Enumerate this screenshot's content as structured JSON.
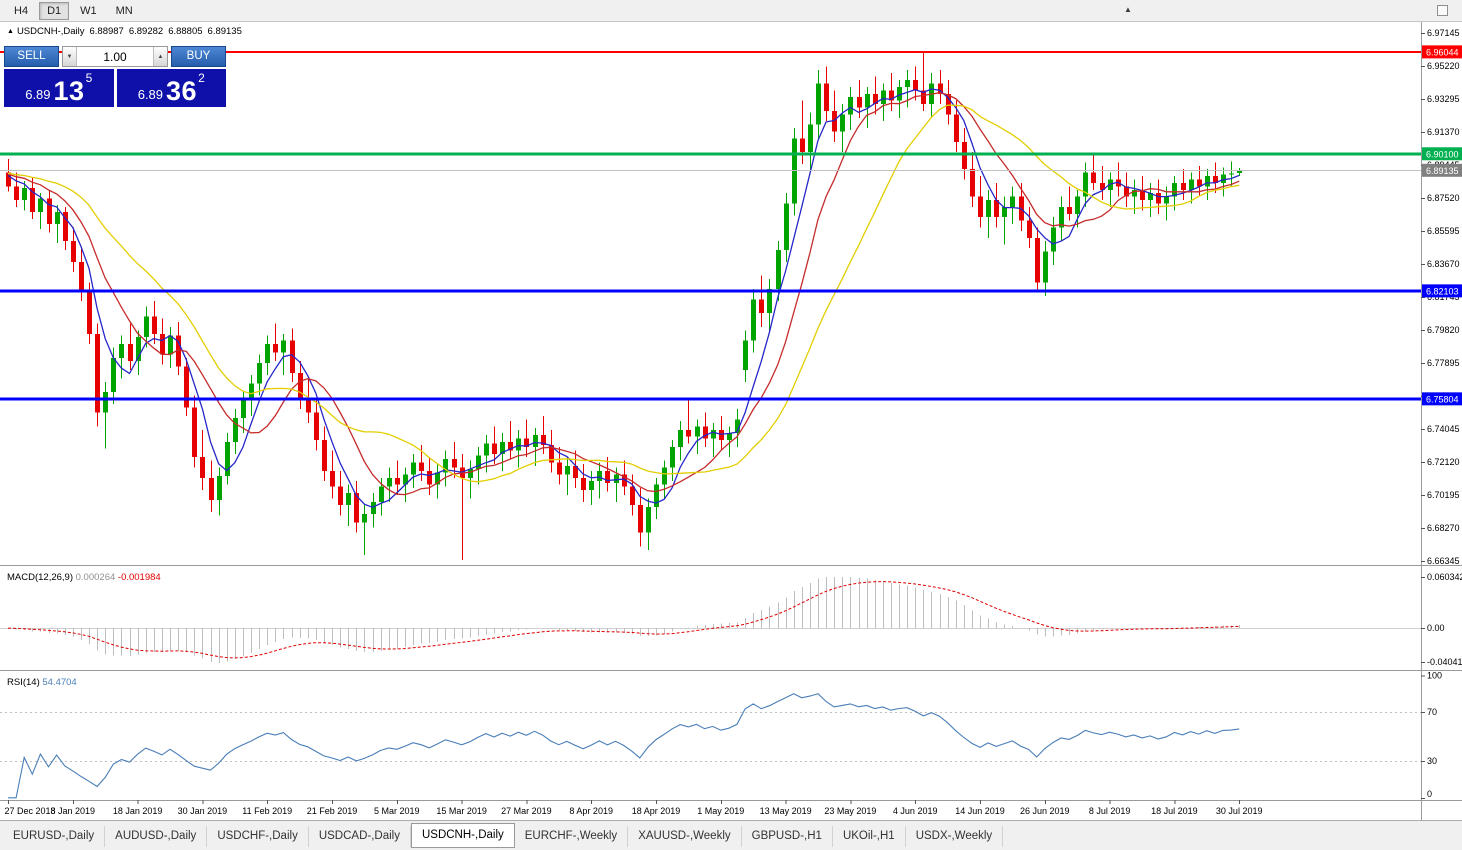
{
  "toolbar": {
    "timeframes": [
      {
        "label": "H4",
        "active": false
      },
      {
        "label": "D1",
        "active": true
      },
      {
        "label": "W1",
        "active": false
      },
      {
        "label": "MN",
        "active": false
      }
    ],
    "icons": {
      "up_triangle": "▲",
      "down_triangle": "▼"
    }
  },
  "chart_header": {
    "icon": "▲",
    "symbol_period": "USDCNH-,Daily",
    "open": "6.88987",
    "high": "6.89282",
    "low": "6.88805",
    "close": "6.89135"
  },
  "trade_panel": {
    "sell_label": "SELL",
    "buy_label": "BUY",
    "volume": "1.00",
    "sell_price_prefix": "6.89",
    "sell_price_big": "13",
    "sell_price_sup": "5",
    "buy_price_prefix": "6.89",
    "buy_price_big": "36",
    "buy_price_sup": "2"
  },
  "price_axis": {
    "labels": [
      "6.97145",
      "6.95220",
      "6.93295",
      "6.91370",
      "6.89445",
      "6.87520",
      "6.85595",
      "6.83670",
      "6.81745",
      "6.79820",
      "6.77895",
      "6.75970",
      "6.74045",
      "6.72120",
      "6.70195",
      "6.68270",
      "6.66345"
    ]
  },
  "date_axis": {
    "labels": [
      {
        "text": "27 Dec 2018",
        "i": 0
      },
      {
        "text": "8 Jan 2019",
        "i": 8
      },
      {
        "text": "18 Jan 2019",
        "i": 16
      },
      {
        "text": "30 Jan 2019",
        "i": 24
      },
      {
        "text": "11 Feb 2019",
        "i": 32
      },
      {
        "text": "21 Feb 2019",
        "i": 40
      },
      {
        "text": "5 Mar 2019",
        "i": 48
      },
      {
        "text": "15 Mar 2019",
        "i": 56
      },
      {
        "text": "27 Mar 2019",
        "i": 64
      },
      {
        "text": "8 Apr 2019",
        "i": 72
      },
      {
        "text": "18 Apr 2019",
        "i": 80
      },
      {
        "text": "1 May 2019",
        "i": 88
      },
      {
        "text": "13 May 2019",
        "i": 96
      },
      {
        "text": "23 May 2019",
        "i": 104
      },
      {
        "text": "4 Jun 2019",
        "i": 112
      },
      {
        "text": "14 Jun 2019",
        "i": 120
      },
      {
        "text": "26 Jun 2019",
        "i": 128
      },
      {
        "text": "8 Jul 2019",
        "i": 136
      },
      {
        "text": "18 Jul 2019",
        "i": 144
      },
      {
        "text": "30 Jul 2019",
        "i": 152
      }
    ]
  },
  "macd_panel": {
    "name": "MACD(12,26,9)",
    "fast": 12,
    "slow": 26,
    "signal": 9,
    "main_value": "0.000264",
    "signal_value": "-0.001984",
    "main_color": "#8f8f8f",
    "signal_color": "#e00000",
    "hist_color": "#bdbdbd",
    "axis_labels": [
      "0.060342",
      "0.00",
      "-0.040415"
    ]
  },
  "rsi_panel": {
    "name": "RSI(14)",
    "period": 14,
    "value": "54.4704",
    "color": "#4a7eb8",
    "levels": [
      "100",
      "70",
      "30",
      "0"
    ]
  },
  "tabs": [
    {
      "label": "EURUSD-,Daily",
      "active": false
    },
    {
      "label": "AUDUSD-,Daily",
      "active": false
    },
    {
      "label": "USDCHF-,Daily",
      "active": false
    },
    {
      "label": "USDCAD-,Daily",
      "active": false
    },
    {
      "label": "USDCNH-,Daily",
      "active": true
    },
    {
      "label": "EURCHF-,Weekly",
      "active": false
    },
    {
      "label": "XAUUSD-,Weekly",
      "active": false
    },
    {
      "label": "GBPUSD-,H1",
      "active": false
    },
    {
      "label": "UKOil-,H1",
      "active": false
    },
    {
      "label": "USDX-,Weekly",
      "active": false
    }
  ],
  "chart_data": {
    "type": "candlestick",
    "symbol": "USDCNH-",
    "timeframe": "Daily",
    "price_range": [
      6.66345,
      6.97145
    ],
    "grid_step": 0.01925,
    "candle_up_color": "#00a400",
    "candle_down_color": "#e60000",
    "hlines": [
      {
        "price": 6.96044,
        "label": "6.96044",
        "color": "#ff0000",
        "width": 2
      },
      {
        "price": 6.901,
        "label": "6.90100",
        "color": "#00b050",
        "width": 3
      },
      {
        "price": 6.82103,
        "label": "6.82103",
        "color": "#0000ff",
        "width": 3
      },
      {
        "price": 6.75804,
        "label": "6.75804",
        "color": "#0000ff",
        "width": 3
      }
    ],
    "bid_line": {
      "price": 6.89135,
      "label": "6.89135",
      "line_color": "#c0c0c0",
      "tag_color": "#808080"
    },
    "ma_lines": [
      {
        "period": 5,
        "color": "#2626c8"
      },
      {
        "period": 10,
        "color": "#c62b2b"
      },
      {
        "period": 20,
        "color": "#e3ce00"
      }
    ],
    "candles": [
      [
        6.89,
        6.898,
        6.879,
        6.882
      ],
      [
        6.882,
        6.89,
        6.87,
        6.874
      ],
      [
        6.874,
        6.885,
        6.868,
        6.881
      ],
      [
        6.881,
        6.887,
        6.863,
        6.867
      ],
      [
        6.867,
        6.878,
        6.857,
        6.875
      ],
      [
        6.875,
        6.88,
        6.855,
        6.86
      ],
      [
        6.86,
        6.871,
        6.849,
        6.867
      ],
      [
        6.867,
        6.87,
        6.845,
        6.85
      ],
      [
        6.85,
        6.858,
        6.832,
        6.838
      ],
      [
        6.838,
        6.846,
        6.815,
        6.82
      ],
      [
        6.82,
        6.826,
        6.79,
        6.796
      ],
      [
        6.796,
        6.802,
        6.742,
        6.75
      ],
      [
        6.75,
        6.768,
        6.729,
        6.762
      ],
      [
        6.762,
        6.788,
        6.755,
        6.782
      ],
      [
        6.782,
        6.795,
        6.77,
        6.79
      ],
      [
        6.79,
        6.802,
        6.775,
        6.78
      ],
      [
        6.78,
        6.798,
        6.772,
        6.794
      ],
      [
        6.794,
        6.812,
        6.788,
        6.806
      ],
      [
        6.806,
        6.815,
        6.79,
        6.796
      ],
      [
        6.796,
        6.805,
        6.778,
        6.784
      ],
      [
        6.784,
        6.8,
        6.776,
        6.795
      ],
      [
        6.795,
        6.803,
        6.772,
        6.777
      ],
      [
        6.777,
        6.782,
        6.748,
        6.753
      ],
      [
        6.753,
        6.76,
        6.718,
        6.724
      ],
      [
        6.724,
        6.74,
        6.705,
        6.712
      ],
      [
        6.712,
        6.722,
        6.692,
        6.699
      ],
      [
        6.699,
        6.718,
        6.69,
        6.713
      ],
      [
        6.713,
        6.738,
        6.708,
        6.733
      ],
      [
        6.733,
        6.752,
        6.726,
        6.747
      ],
      [
        6.747,
        6.762,
        6.738,
        6.757
      ],
      [
        6.757,
        6.772,
        6.748,
        6.767
      ],
      [
        6.767,
        6.784,
        6.76,
        6.779
      ],
      [
        6.779,
        6.795,
        6.772,
        6.79
      ],
      [
        6.79,
        6.802,
        6.78,
        6.785
      ],
      [
        6.785,
        6.796,
        6.772,
        6.792
      ],
      [
        6.792,
        6.799,
        6.768,
        6.773
      ],
      [
        6.773,
        6.78,
        6.752,
        6.758
      ],
      [
        6.758,
        6.77,
        6.744,
        6.75
      ],
      [
        6.75,
        6.758,
        6.728,
        6.734
      ],
      [
        6.734,
        6.742,
        6.71,
        6.716
      ],
      [
        6.716,
        6.728,
        6.7,
        6.707
      ],
      [
        6.707,
        6.716,
        6.69,
        6.696
      ],
      [
        6.696,
        6.708,
        6.684,
        6.703
      ],
      [
        6.703,
        6.71,
        6.68,
        6.686
      ],
      [
        6.686,
        6.697,
        6.667,
        6.691
      ],
      [
        6.691,
        6.703,
        6.683,
        6.698
      ],
      [
        6.698,
        6.712,
        6.69,
        6.707
      ],
      [
        6.707,
        6.718,
        6.698,
        6.712
      ],
      [
        6.712,
        6.722,
        6.702,
        6.708
      ],
      [
        6.708,
        6.718,
        6.698,
        6.714
      ],
      [
        6.714,
        6.726,
        6.706,
        6.721
      ],
      [
        6.721,
        6.731,
        6.71,
        6.716
      ],
      [
        6.716,
        6.724,
        6.702,
        6.708
      ],
      [
        6.708,
        6.72,
        6.7,
        6.715
      ],
      [
        6.715,
        6.728,
        6.707,
        6.723
      ],
      [
        6.723,
        6.733,
        6.712,
        6.718
      ],
      [
        6.718,
        6.726,
        6.664,
        6.712
      ],
      [
        6.712,
        6.722,
        6.7,
        6.717
      ],
      [
        6.717,
        6.73,
        6.708,
        6.725
      ],
      [
        6.725,
        6.737,
        6.715,
        6.732
      ],
      [
        6.732,
        6.742,
        6.72,
        6.726
      ],
      [
        6.726,
        6.738,
        6.716,
        6.733
      ],
      [
        6.733,
        6.745,
        6.723,
        6.728
      ],
      [
        6.728,
        6.74,
        6.718,
        6.735
      ],
      [
        6.735,
        6.746,
        6.724,
        6.73
      ],
      [
        6.73,
        6.741,
        6.719,
        6.737
      ],
      [
        6.737,
        6.748,
        6.726,
        6.731
      ],
      [
        6.731,
        6.74,
        6.715,
        6.721
      ],
      [
        6.721,
        6.73,
        6.708,
        6.714
      ],
      [
        6.714,
        6.724,
        6.702,
        6.719
      ],
      [
        6.719,
        6.728,
        6.706,
        6.712
      ],
      [
        6.712,
        6.72,
        6.698,
        6.705
      ],
      [
        6.705,
        6.716,
        6.696,
        6.71
      ],
      [
        6.71,
        6.721,
        6.7,
        6.716
      ],
      [
        6.716,
        6.724,
        6.704,
        6.709
      ],
      [
        6.709,
        6.718,
        6.698,
        6.714
      ],
      [
        6.714,
        6.722,
        6.702,
        6.707
      ],
      [
        6.707,
        6.714,
        6.69,
        6.696
      ],
      [
        6.696,
        6.706,
        6.672,
        6.68
      ],
      [
        6.68,
        6.7,
        6.67,
        6.695
      ],
      [
        6.695,
        6.712,
        6.688,
        6.708
      ],
      [
        6.708,
        6.722,
        6.7,
        6.718
      ],
      [
        6.718,
        6.734,
        6.71,
        6.73
      ],
      [
        6.73,
        6.745,
        6.722,
        6.74
      ],
      [
        6.74,
        6.758,
        6.732,
        6.736
      ],
      [
        6.736,
        6.746,
        6.726,
        6.742
      ],
      [
        6.742,
        6.75,
        6.73,
        6.735
      ],
      [
        6.735,
        6.744,
        6.724,
        6.74
      ],
      [
        6.74,
        6.748,
        6.728,
        6.734
      ],
      [
        6.734,
        6.742,
        6.724,
        6.738
      ],
      [
        6.738,
        6.752,
        6.73,
        6.746
      ],
      [
        6.775,
        6.798,
        6.768,
        6.792
      ],
      [
        6.792,
        6.822,
        6.785,
        6.816
      ],
      [
        6.816,
        6.83,
        6.8,
        6.808
      ],
      [
        6.808,
        6.828,
        6.798,
        6.822
      ],
      [
        6.822,
        6.85,
        6.815,
        6.845
      ],
      [
        6.845,
        6.878,
        6.838,
        6.872
      ],
      [
        6.872,
        6.916,
        6.865,
        6.91
      ],
      [
        6.91,
        6.932,
        6.895,
        6.902
      ],
      [
        6.902,
        6.925,
        6.89,
        6.918
      ],
      [
        6.918,
        6.95,
        6.91,
        6.942
      ],
      [
        6.942,
        6.952,
        6.92,
        6.926
      ],
      [
        6.926,
        6.938,
        6.908,
        6.914
      ],
      [
        6.914,
        6.93,
        6.902,
        6.924
      ],
      [
        6.924,
        6.94,
        6.915,
        6.934
      ],
      [
        6.934,
        6.944,
        6.922,
        6.928
      ],
      [
        6.928,
        6.94,
        6.916,
        6.936
      ],
      [
        6.936,
        6.946,
        6.924,
        6.93
      ],
      [
        6.93,
        6.942,
        6.92,
        6.938
      ],
      [
        6.938,
        6.948,
        6.926,
        6.932
      ],
      [
        6.932,
        6.944,
        6.922,
        6.94
      ],
      [
        6.94,
        6.95,
        6.928,
        6.944
      ],
      [
        6.944,
        6.952,
        6.932,
        6.938
      ],
      [
        6.938,
        6.9604,
        6.926,
        6.93
      ],
      [
        6.93,
        6.948,
        6.922,
        6.942
      ],
      [
        6.942,
        6.95,
        6.93,
        6.936
      ],
      [
        6.936,
        6.944,
        6.918,
        6.924
      ],
      [
        6.924,
        6.932,
        6.902,
        6.908
      ],
      [
        6.908,
        6.916,
        6.886,
        6.892
      ],
      [
        6.892,
        6.902,
        6.87,
        6.876
      ],
      [
        6.876,
        6.888,
        6.858,
        6.864
      ],
      [
        6.864,
        6.88,
        6.852,
        6.874
      ],
      [
        6.874,
        6.884,
        6.858,
        6.864
      ],
      [
        6.864,
        6.876,
        6.848,
        6.87
      ],
      [
        6.87,
        6.882,
        6.86,
        6.876
      ],
      [
        6.876,
        6.884,
        6.856,
        6.862
      ],
      [
        6.862,
        6.87,
        6.846,
        6.852
      ],
      [
        6.852,
        6.858,
        6.82,
        6.826
      ],
      [
        6.826,
        6.85,
        6.818,
        6.844
      ],
      [
        6.844,
        6.864,
        6.836,
        6.858
      ],
      [
        6.858,
        6.876,
        6.85,
        6.87
      ],
      [
        6.87,
        6.882,
        6.862,
        6.866
      ],
      [
        6.866,
        6.88,
        6.858,
        6.876
      ],
      [
        6.876,
        6.896,
        6.87,
        6.89
      ],
      [
        6.89,
        6.9,
        6.88,
        6.884
      ],
      [
        6.884,
        6.894,
        6.874,
        6.88
      ],
      [
        6.88,
        6.89,
        6.87,
        6.886
      ],
      [
        6.886,
        6.896,
        6.876,
        6.882
      ],
      [
        6.882,
        6.89,
        6.87,
        6.876
      ],
      [
        6.876,
        6.886,
        6.866,
        6.88
      ],
      [
        6.88,
        6.888,
        6.868,
        6.874
      ],
      [
        6.874,
        6.884,
        6.864,
        6.878
      ],
      [
        6.878,
        6.886,
        6.866,
        6.872
      ],
      [
        6.872,
        6.882,
        6.862,
        6.876
      ],
      [
        6.876,
        6.888,
        6.868,
        6.884
      ],
      [
        6.884,
        6.892,
        6.874,
        6.88
      ],
      [
        6.88,
        6.89,
        6.872,
        6.886
      ],
      [
        6.886,
        6.894,
        6.876,
        6.882
      ],
      [
        6.882,
        6.892,
        6.874,
        6.888
      ],
      [
        6.888,
        6.896,
        6.878,
        6.884
      ],
      [
        6.884,
        6.893,
        6.876,
        6.889
      ],
      [
        6.889,
        6.8965,
        6.882,
        6.8895
      ],
      [
        6.88987,
        6.89282,
        6.88805,
        6.89135
      ]
    ]
  }
}
